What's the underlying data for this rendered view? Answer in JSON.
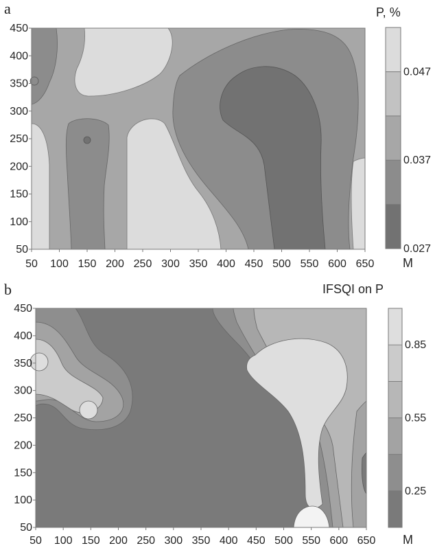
{
  "chart_data": [
    {
      "type": "heatmap",
      "panel_label": "a",
      "title": "P,  %",
      "xlabel": "M",
      "x_ticks": [
        50,
        100,
        150,
        200,
        250,
        300,
        350,
        400,
        450,
        500,
        550,
        600,
        650
      ],
      "y_ticks": [
        50,
        100,
        150,
        200,
        250,
        300,
        350,
        400,
        450
      ],
      "xlim": [
        50,
        650
      ],
      "ylim": [
        50,
        450
      ],
      "legend": {
        "placement": "right",
        "levels": [
          0.027,
          0.032,
          0.037,
          0.042,
          0.047,
          0.052
        ],
        "labels": [
          {
            "value": 0.027,
            "text": "0.027"
          },
          {
            "value": 0.037,
            "text": "0.037"
          },
          {
            "value": 0.047,
            "text": "0.047"
          }
        ]
      },
      "colors": [
        "#727272",
        "#8c8c8c",
        "#a7a7a7",
        "#c2c2c2",
        "#dcdcdc",
        "#f3f3f3"
      ]
    },
    {
      "type": "heatmap",
      "panel_label": "b",
      "title": "IFSQI on P",
      "xlabel": "M",
      "x_ticks": [
        50,
        100,
        150,
        200,
        250,
        300,
        350,
        400,
        450,
        500,
        550,
        600,
        650
      ],
      "y_ticks": [
        50,
        100,
        150,
        200,
        250,
        300,
        350,
        400,
        450
      ],
      "xlim": [
        50,
        650
      ],
      "ylim": [
        50,
        450
      ],
      "legend": {
        "placement": "right",
        "levels": [
          0.1,
          0.25,
          0.4,
          0.55,
          0.7,
          0.85,
          1.0
        ],
        "labels": [
          {
            "value": 0.25,
            "text": "0.25"
          },
          {
            "value": 0.55,
            "text": "0.55"
          },
          {
            "value": 0.85,
            "text": "0.85"
          }
        ]
      },
      "colors": [
        "#7a7a7a",
        "#8e8e8e",
        "#a3a3a3",
        "#b7b7b7",
        "#cbcbcb",
        "#dedede",
        "#f3f3f3"
      ]
    }
  ]
}
